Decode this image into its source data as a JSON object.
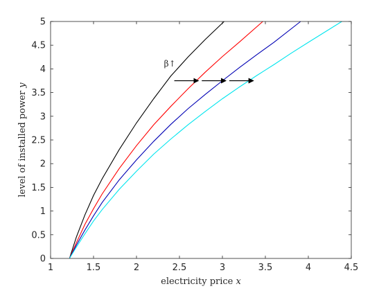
{
  "chart_data": {
    "type": "line",
    "title": "",
    "xlabel_text": "electricity price ",
    "xlabel_var": "x",
    "ylabel_text": "level of installed power ",
    "ylabel_var": "y",
    "xlim": [
      1,
      4.5
    ],
    "ylim": [
      0,
      5
    ],
    "xticks": [
      1,
      1.5,
      2,
      2.5,
      3,
      3.5,
      4,
      4.5
    ],
    "yticks": [
      0,
      0.5,
      1,
      1.5,
      2,
      2.5,
      3,
      3.5,
      4,
      4.5,
      5
    ],
    "grid": false,
    "legend": false,
    "series": [
      {
        "color": "#000000",
        "x": [
          1.22,
          1.3,
          1.4,
          1.5,
          1.6,
          1.8,
          2.0,
          2.2,
          2.4,
          2.6,
          2.8,
          3.02
        ],
        "y": [
          0,
          0.45,
          0.92,
          1.33,
          1.68,
          2.3,
          2.86,
          3.37,
          3.85,
          4.25,
          4.62,
          5
        ]
      },
      {
        "color": "#ff0000",
        "x": [
          1.22,
          1.3,
          1.4,
          1.5,
          1.6,
          1.8,
          2.0,
          2.2,
          2.4,
          2.6,
          2.8,
          3.0,
          3.2,
          3.47
        ],
        "y": [
          0,
          0.33,
          0.72,
          1.05,
          1.36,
          1.9,
          2.38,
          2.82,
          3.21,
          3.58,
          3.93,
          4.26,
          4.57,
          5
        ]
      },
      {
        "color": "#0000b4",
        "x": [
          1.22,
          1.3,
          1.4,
          1.5,
          1.6,
          1.8,
          2.0,
          2.2,
          2.4,
          2.6,
          2.8,
          3.0,
          3.2,
          3.4,
          3.6,
          3.91
        ],
        "y": [
          0,
          0.28,
          0.6,
          0.9,
          1.18,
          1.66,
          2.08,
          2.47,
          2.83,
          3.16,
          3.46,
          3.75,
          4.03,
          4.3,
          4.56,
          5
        ]
      },
      {
        "color": "#00e5ee",
        "x": [
          1.22,
          1.3,
          1.4,
          1.5,
          1.6,
          1.8,
          2.0,
          2.2,
          2.4,
          2.6,
          2.8,
          3.0,
          3.2,
          3.4,
          3.6,
          3.8,
          4.0,
          4.39
        ],
        "y": [
          0,
          0.24,
          0.52,
          0.79,
          1.03,
          1.46,
          1.84,
          2.2,
          2.52,
          2.82,
          3.1,
          3.37,
          3.62,
          3.86,
          4.09,
          4.33,
          4.56,
          5
        ]
      }
    ],
    "annotations": {
      "label": "β↑",
      "label_x": 2.32,
      "label_y": 4.05,
      "arrows": [
        {
          "x_from": 2.44,
          "x_to": 2.72,
          "y": 3.75
        },
        {
          "x_from": 2.76,
          "x_to": 3.04,
          "y": 3.75
        },
        {
          "x_from": 3.08,
          "x_to": 3.36,
          "y": 3.75
        }
      ]
    }
  }
}
